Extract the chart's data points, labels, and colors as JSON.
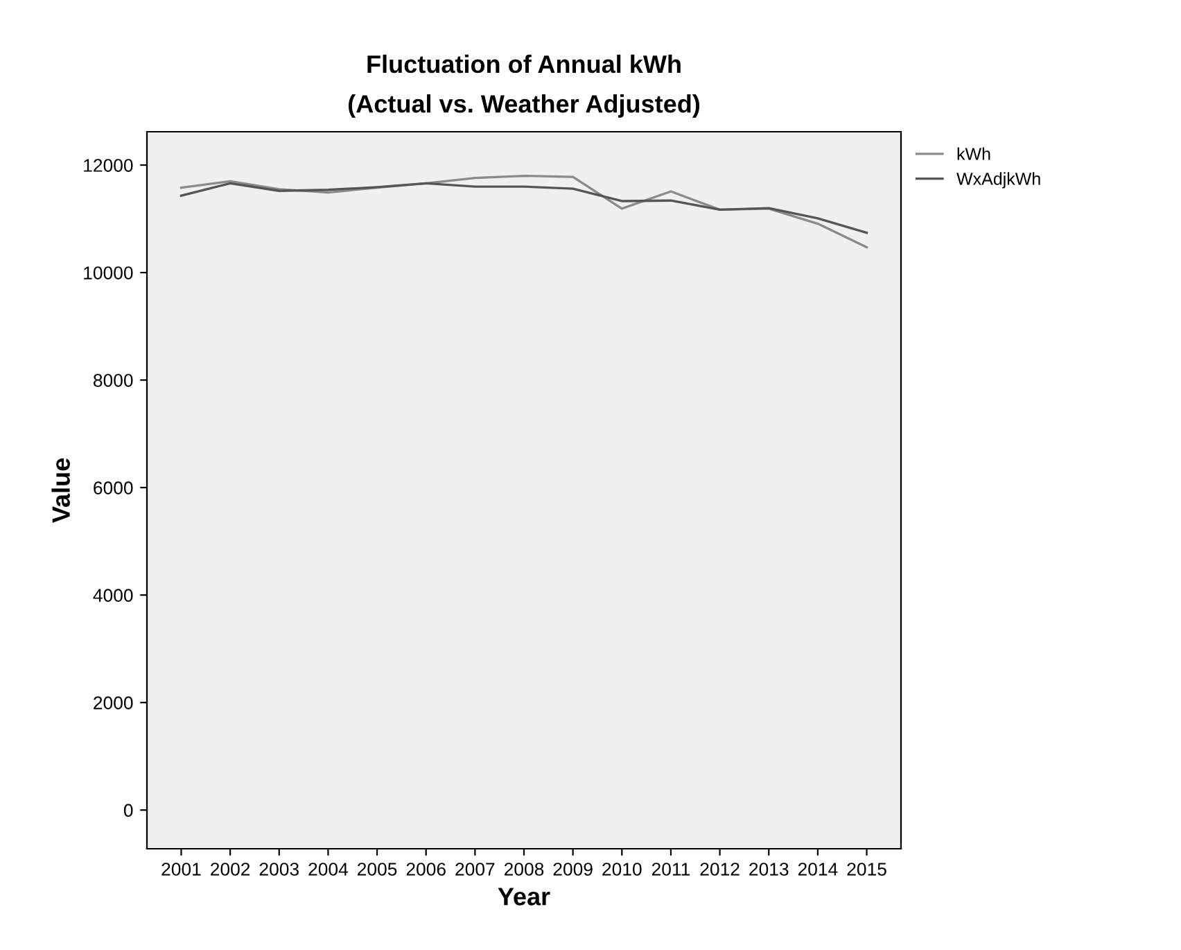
{
  "chart_data": {
    "type": "line",
    "title": "Fluctuation of Annual kWh\n(Actual vs. Weather Adjusted)",
    "xlabel": "Year",
    "ylabel": "Value",
    "categories": [
      "2001",
      "2002",
      "2003",
      "2004",
      "2005",
      "2006",
      "2007",
      "2008",
      "2009",
      "2010",
      "2011",
      "2012",
      "2013",
      "2014",
      "2015"
    ],
    "series": [
      {
        "name": "kWh",
        "color": "#8a8a8a",
        "values": [
          11580,
          11700,
          11550,
          11490,
          11580,
          11660,
          11760,
          11800,
          11780,
          11190,
          11510,
          11170,
          11190,
          10910,
          10470
        ]
      },
      {
        "name": "WxAdjkWh",
        "color": "#555555",
        "values": [
          11430,
          11660,
          11520,
          11540,
          11590,
          11660,
          11600,
          11600,
          11560,
          11330,
          11340,
          11170,
          11200,
          11010,
          10740
        ]
      }
    ],
    "ylim": [
      -720,
      12620
    ],
    "yticks": [
      0,
      2000,
      4000,
      6000,
      8000,
      10000,
      12000
    ],
    "grid": false,
    "legend": "top right",
    "marker": "none",
    "line_style": "solid"
  }
}
